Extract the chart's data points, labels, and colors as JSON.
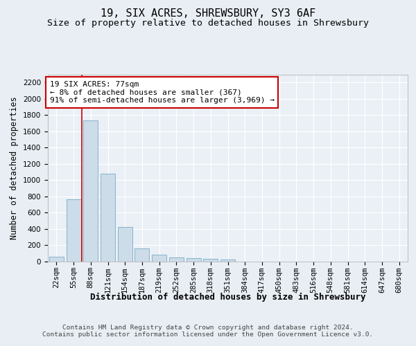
{
  "title": "19, SIX ACRES, SHREWSBURY, SY3 6AF",
  "subtitle": "Size of property relative to detached houses in Shrewsbury",
  "xlabel": "Distribution of detached houses by size in Shrewsbury",
  "ylabel": "Number of detached properties",
  "bar_values": [
    55,
    765,
    1730,
    1075,
    420,
    155,
    85,
    48,
    42,
    28,
    18,
    0,
    0,
    0,
    0,
    0,
    0,
    0,
    0,
    0,
    0
  ],
  "bar_labels": [
    "22sqm",
    "55sqm",
    "88sqm",
    "121sqm",
    "154sqm",
    "187sqm",
    "219sqm",
    "252sqm",
    "285sqm",
    "318sqm",
    "351sqm",
    "384sqm",
    "417sqm",
    "450sqm",
    "483sqm",
    "516sqm",
    "548sqm",
    "581sqm",
    "614sqm",
    "647sqm",
    "680sqm"
  ],
  "bar_color": "#ccdce8",
  "bar_edgecolor": "#7aaac8",
  "bar_linewidth": 0.6,
  "vline_x_idx": 2,
  "vline_color": "#cc0000",
  "annotation_text": "19 SIX ACRES: 77sqm\n← 8% of detached houses are smaller (367)\n91% of semi-detached houses are larger (3,969) →",
  "annotation_box_color": "#ffffff",
  "annotation_box_edgecolor": "#cc0000",
  "ylim": [
    0,
    2300
  ],
  "yticks": [
    0,
    200,
    400,
    600,
    800,
    1000,
    1200,
    1400,
    1600,
    1800,
    2000,
    2200
  ],
  "bg_color": "#e8eef4",
  "axes_bg_color": "#eaf0f6",
  "footer": "Contains HM Land Registry data © Crown copyright and database right 2024.\nContains public sector information licensed under the Open Government Licence v3.0.",
  "title_fontsize": 11,
  "subtitle_fontsize": 9.5,
  "xlabel_fontsize": 9,
  "ylabel_fontsize": 8.5,
  "tick_fontsize": 7.5,
  "footer_fontsize": 6.8
}
